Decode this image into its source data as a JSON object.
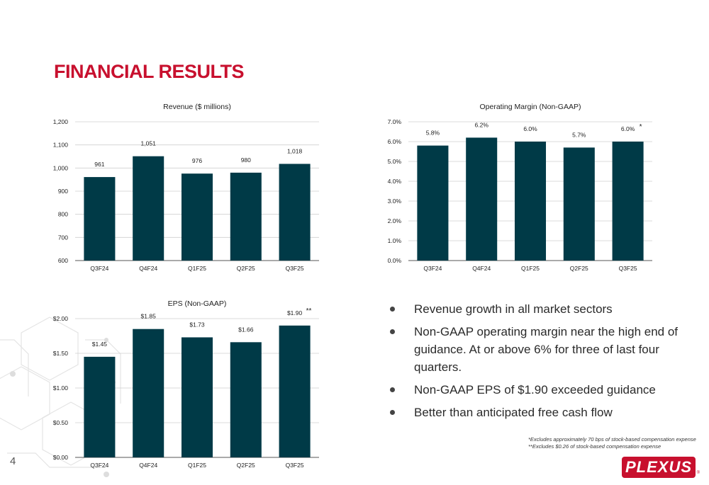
{
  "slide": {
    "title": "FINANCIAL RESULTS",
    "page_number": "4",
    "bar_color": "#003a47",
    "accent_color": "#c8102e"
  },
  "bullets": [
    "Revenue growth in all market sectors",
    "Non-GAAP operating margin near the high end of guidance. At or above 6% for three of last four quarters.",
    "Non-GAAP EPS of $1.90 exceeded guidance",
    "Better than anticipated free cash flow"
  ],
  "footnotes": {
    "note1": "*Excludes approximately 70 bps of stock-based compensation expense",
    "note2": "**Excludes $0.26 of stock-based compensation expense"
  },
  "logo": {
    "text": "PLEXUS",
    "mark": "®"
  },
  "chart_data": [
    {
      "type": "bar",
      "title": "Revenue ($ millions)",
      "categories": [
        "Q3F24",
        "Q4F24",
        "Q1F25",
        "Q2F25",
        "Q3F25"
      ],
      "values": [
        961,
        1051,
        976,
        980,
        1018
      ],
      "value_labels": [
        "961",
        "1,051",
        "976",
        "980",
        "1,018"
      ],
      "annotations": [
        "",
        "",
        "",
        "",
        ""
      ],
      "ylim": [
        600,
        1200
      ],
      "yticks": [
        600,
        700,
        800,
        900,
        1000,
        1100,
        1200
      ],
      "ytick_labels": [
        "600",
        "700",
        "800",
        "900",
        "1,000",
        "1,100",
        "1,200"
      ],
      "grid": true
    },
    {
      "type": "bar",
      "title": "Operating Margin (Non-GAAP)",
      "categories": [
        "Q3F24",
        "Q4F24",
        "Q1F25",
        "Q2F25",
        "Q3F25"
      ],
      "values": [
        5.8,
        6.2,
        6.0,
        5.7,
        6.0
      ],
      "value_labels": [
        "5.8%",
        "6.2%",
        "6.0%",
        "5.7%",
        "6.0%"
      ],
      "annotations": [
        "",
        "",
        "",
        "",
        "*"
      ],
      "ylim": [
        0,
        7
      ],
      "yticks": [
        0,
        1,
        2,
        3,
        4,
        5,
        6,
        7
      ],
      "ytick_labels": [
        "0.0%",
        "1.0%",
        "2.0%",
        "3.0%",
        "4.0%",
        "5.0%",
        "6.0%",
        "7.0%"
      ],
      "grid": true
    },
    {
      "type": "bar",
      "title": "EPS (Non-GAAP)",
      "categories": [
        "Q3F24",
        "Q4F24",
        "Q1F25",
        "Q2F25",
        "Q3F25"
      ],
      "values": [
        1.45,
        1.85,
        1.73,
        1.66,
        1.9
      ],
      "value_labels": [
        "$1.45",
        "$1.85",
        "$1.73",
        "$1.66",
        "$1.90"
      ],
      "annotations": [
        "",
        "",
        "",
        "",
        "**"
      ],
      "ylim": [
        0,
        2
      ],
      "yticks": [
        0,
        0.5,
        1,
        1.5,
        2
      ],
      "ytick_labels": [
        "$0.00",
        "$0.50",
        "$1.00",
        "$1.50",
        "$2.00"
      ],
      "grid": true
    }
  ]
}
